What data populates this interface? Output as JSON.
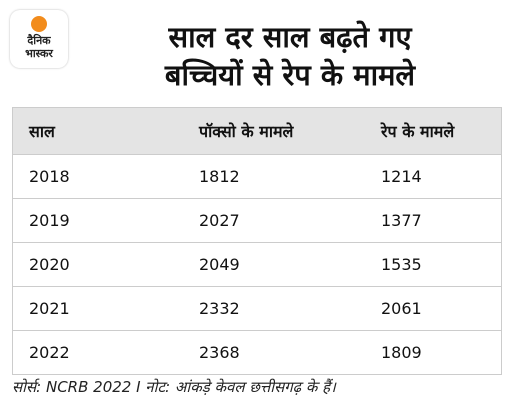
{
  "header": {
    "logo": [
      "दैनिक",
      "भास्कर"
    ],
    "title": [
      "साल दर साल बढ़ते गए",
      "बच्चियों से रेप के मामले"
    ]
  },
  "table": {
    "columns": [
      "साल",
      "पॉक्सो के मामले",
      "रेप के मामले"
    ],
    "rows": [
      [
        2018,
        1812,
        1214
      ],
      [
        2019,
        2027,
        1377
      ],
      [
        2020,
        2049,
        1535
      ],
      [
        2021,
        2332,
        2061
      ],
      [
        2022,
        2368,
        1809
      ]
    ]
  },
  "footer": "सोर्स: NCRB 2022 I नोट: आंकड़े केवल छत्तीसगढ़ के हैं।"
}
